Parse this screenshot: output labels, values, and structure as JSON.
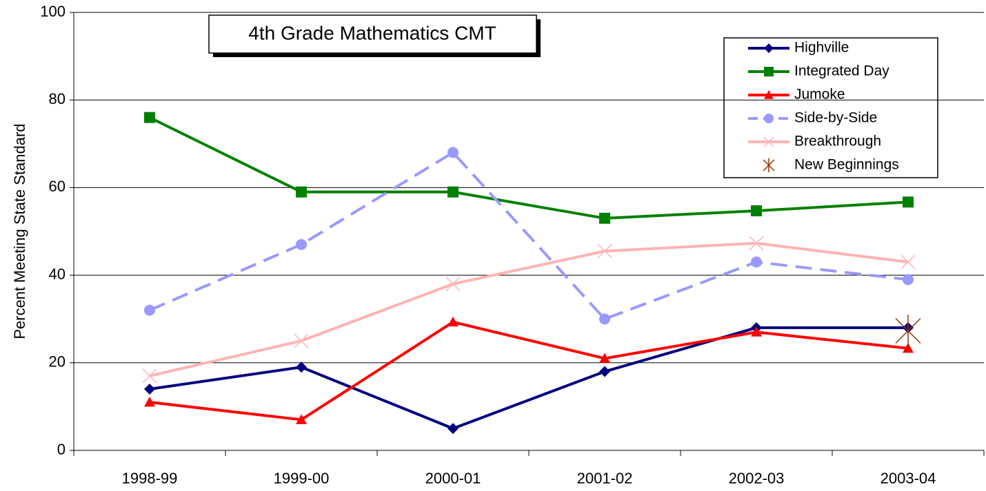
{
  "chart_data": {
    "type": "line",
    "title": "4th Grade Mathematics CMT",
    "y_label": "Percent Meeting State Standard",
    "categories": [
      "1998-99",
      "1999-00",
      "2000-01",
      "2001-02",
      "2002-03",
      "2003-04"
    ],
    "series": [
      {
        "name": "Highville",
        "color": "#000080",
        "marker": "diamond",
        "dash": false,
        "values": [
          14,
          19,
          5,
          18,
          28,
          28
        ]
      },
      {
        "name": "Integrated Day",
        "color": "#008000",
        "marker": "square",
        "dash": false,
        "values": [
          76,
          59,
          59,
          53,
          54.7,
          56.7
        ]
      },
      {
        "name": "Jumoke",
        "color": "#ff0000",
        "marker": "triangle",
        "dash": false,
        "values": [
          11,
          7,
          29.3,
          21,
          27,
          23.3
        ]
      },
      {
        "name": "Side-by-Side",
        "color": "#9999ff",
        "marker": "circle",
        "dash": true,
        "values": [
          32,
          47,
          68,
          30,
          43,
          39
        ]
      },
      {
        "name": "Breakthrough",
        "color": "#ffb3b3",
        "marker": "x",
        "dash": false,
        "values": [
          17,
          25,
          38,
          45.5,
          47.3,
          43
        ]
      },
      {
        "name": "New Beginnings",
        "color": "#993300",
        "marker": "star",
        "dash": false,
        "values": [
          null,
          null,
          null,
          null,
          null,
          27.3
        ]
      }
    ],
    "ylim": [
      0,
      100
    ],
    "yticks": [
      0,
      20,
      40,
      60,
      80,
      100
    ],
    "grid": true
  }
}
